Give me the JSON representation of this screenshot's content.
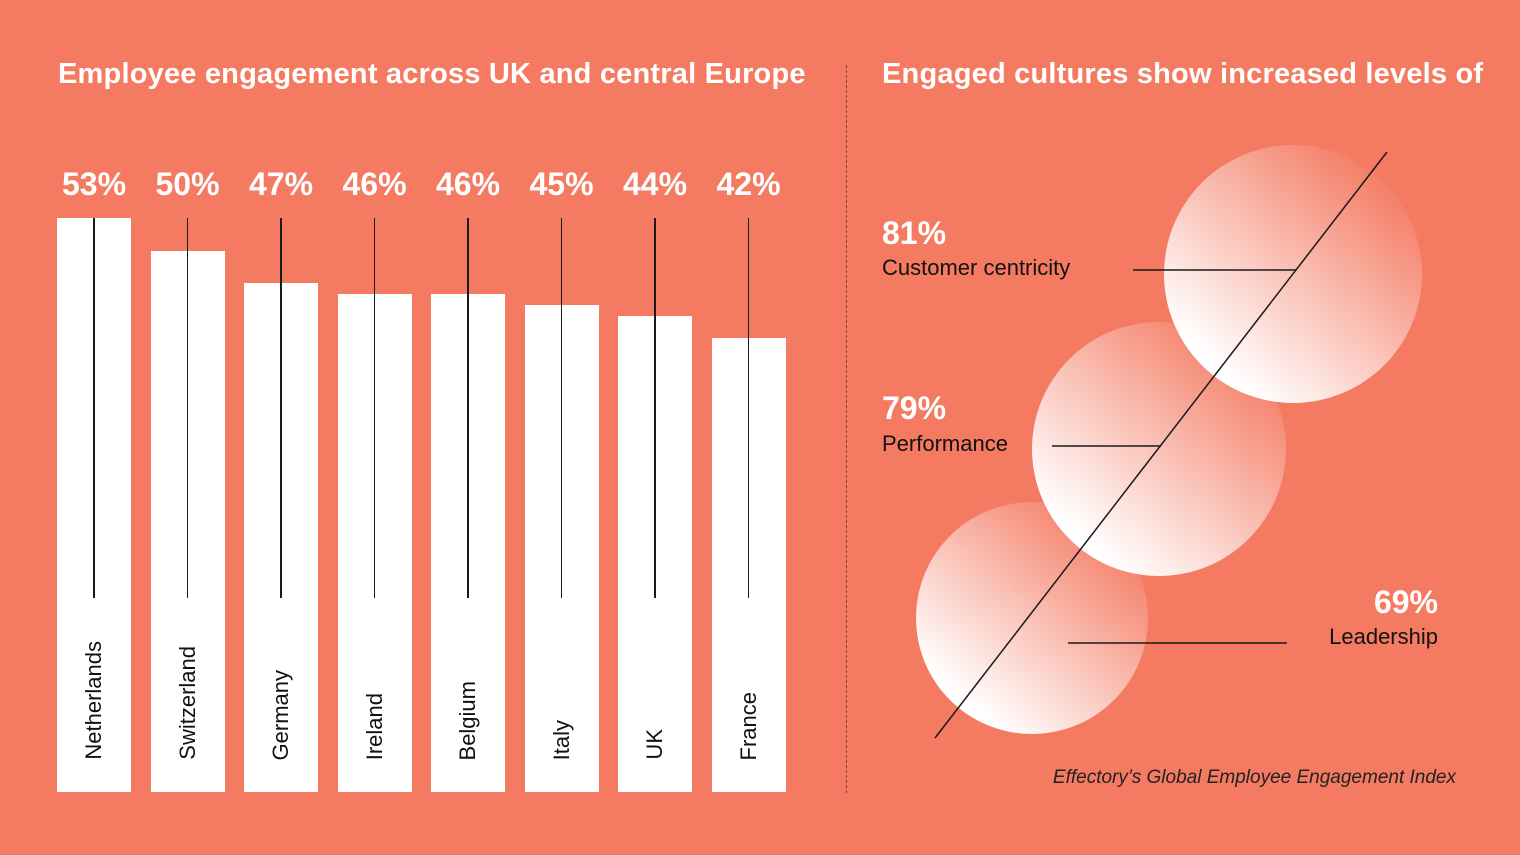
{
  "chart_data": [
    {
      "type": "bar",
      "title": "Employee engagement across UK and central Europe",
      "categories": [
        "Netherlands",
        "Switzerland",
        "Germany",
        "Ireland",
        "Belgium",
        "Italy",
        "UK",
        "France"
      ],
      "values": [
        53,
        50,
        47,
        46,
        46,
        45,
        44,
        42
      ],
      "value_labels": [
        "53%",
        "50%",
        "47%",
        "46%",
        "46%",
        "45%",
        "44%",
        "42%"
      ],
      "unit": "%",
      "grid": false
    },
    {
      "type": "other",
      "title": "Engaged cultures show increased levels of",
      "categories": [
        "Customer centricity",
        "Performance",
        "Leadership"
      ],
      "values": [
        81,
        79,
        69
      ],
      "value_labels": [
        "81%",
        "79%",
        "69%"
      ],
      "unit": "%"
    }
  ],
  "source": "Effectory’s Global Employee Engagement Index",
  "colors": {
    "background": "#F47A62",
    "bar": "#FFFFFF",
    "line": "#1A1A1A"
  }
}
